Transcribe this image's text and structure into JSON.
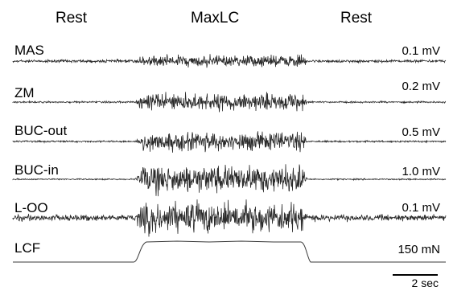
{
  "phases": [
    "Rest",
    "MaxLC",
    "Rest"
  ],
  "channels": [
    {
      "name": "MAS",
      "scale": "0.1 mV"
    },
    {
      "name": "ZM",
      "scale": "0.2 mV"
    },
    {
      "name": "BUC-out",
      "scale": "0.5 mV"
    },
    {
      "name": "BUC-in",
      "scale": "1.0 mV"
    },
    {
      "name": "L-OO",
      "scale": "0.1 mV"
    },
    {
      "name": "LCF",
      "scale": "150 mN"
    }
  ],
  "time_scale": "2 sec",
  "chart_data": {
    "type": "line",
    "title": "",
    "phases": [
      "Rest",
      "MaxLC",
      "Rest"
    ],
    "series": [
      {
        "name": "MAS",
        "scale": "0.1 mV",
        "rest_amplitude": 0.25,
        "active_amplitude": 1.0
      },
      {
        "name": "ZM",
        "scale": "0.2 mV",
        "rest_amplitude": 0.1,
        "active_amplitude": 1.0
      },
      {
        "name": "BUC-out",
        "scale": "0.5 mV",
        "rest_amplitude": 0.1,
        "active_amplitude": 1.0
      },
      {
        "name": "BUC-in",
        "scale": "1.0 mV",
        "rest_amplitude": 0.05,
        "active_amplitude": 1.0
      },
      {
        "name": "L-OO",
        "scale": "0.1 mV",
        "rest_amplitude": 0.2,
        "active_amplitude": 1.0
      },
      {
        "name": "LCF",
        "scale": "150 mN",
        "rest_level": 0,
        "active_level": 1.0
      }
    ],
    "time_scale_bar": "2 sec",
    "grid": false
  }
}
